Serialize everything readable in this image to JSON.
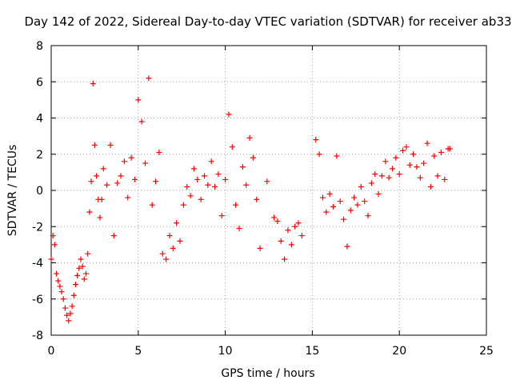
{
  "chart_data": {
    "type": "scatter",
    "title": "Day 142 of 2022, Sidereal Day-to-day VTEC variation (SDTVAR) for receiver ab33",
    "xlabel": "GPS time / hours",
    "ylabel": "SDTVAR / TECUs",
    "xlim": [
      0,
      25
    ],
    "ylim": [
      -8,
      8
    ],
    "x_ticks": [
      0,
      5,
      10,
      15,
      20,
      25
    ],
    "y_ticks": [
      -8,
      -6,
      -4,
      -2,
      0,
      2,
      4,
      6,
      8
    ],
    "x_tick_labels": [
      "0",
      "5",
      "10",
      "15",
      "20",
      "25"
    ],
    "y_tick_labels": [
      "-8",
      "-6",
      "-4",
      "-2",
      "0",
      "2",
      "4",
      "6",
      "8"
    ],
    "grid": true,
    "marker": "+",
    "color": "#ff0000",
    "series": [
      {
        "name": "SDTVAR",
        "x": [
          0.0,
          0.1,
          0.2,
          0.3,
          0.4,
          0.5,
          0.6,
          0.7,
          0.8,
          0.9,
          1.0,
          1.1,
          1.2,
          1.3,
          1.4,
          1.5,
          1.6,
          1.7,
          1.8,
          1.9,
          2.0,
          2.1,
          2.2,
          2.3,
          2.4,
          2.5,
          2.6,
          2.7,
          2.8,
          2.9,
          3.0,
          3.2,
          3.4,
          3.6,
          3.8,
          4.0,
          4.2,
          4.4,
          4.6,
          4.8,
          5.0,
          5.2,
          5.4,
          5.6,
          5.8,
          6.0,
          6.2,
          6.4,
          6.6,
          6.8,
          7.0,
          7.2,
          7.4,
          7.6,
          7.8,
          8.0,
          8.2,
          8.4,
          8.6,
          8.8,
          9.0,
          9.2,
          9.4,
          9.6,
          9.8,
          10.0,
          10.2,
          10.4,
          10.6,
          10.8,
          11.0,
          11.2,
          11.4,
          11.6,
          11.8,
          12.0,
          12.4,
          12.8,
          13.0,
          13.2,
          13.4,
          13.6,
          13.8,
          14.0,
          14.2,
          14.4,
          15.2,
          15.4,
          15.6,
          15.8,
          16.0,
          16.2,
          16.4,
          16.6,
          16.8,
          17.0,
          17.2,
          17.4,
          17.6,
          17.8,
          18.0,
          18.2,
          18.4,
          18.6,
          18.8,
          19.0,
          19.2,
          19.4,
          19.6,
          19.8,
          20.0,
          20.2,
          20.4,
          20.6,
          20.8,
          21.0,
          21.2,
          21.4,
          21.6,
          21.8,
          22.0,
          22.2,
          22.4,
          22.6,
          22.8,
          22.9
        ],
        "y": [
          -3.8,
          -2.5,
          -3.0,
          -4.6,
          -5.0,
          -5.3,
          -5.6,
          -6.0,
          -6.5,
          -6.9,
          -7.2,
          -6.8,
          -6.4,
          -5.8,
          -5.2,
          -4.7,
          -4.3,
          -3.8,
          -4.2,
          -4.9,
          -4.6,
          -3.5,
          -1.2,
          0.5,
          5.9,
          2.5,
          0.8,
          -0.5,
          -1.5,
          -0.5,
          1.2,
          0.3,
          2.5,
          -2.5,
          0.4,
          0.8,
          1.6,
          -0.4,
          1.8,
          0.6,
          5.0,
          3.8,
          1.5,
          6.2,
          -0.8,
          0.5,
          2.1,
          -3.5,
          -3.8,
          -2.5,
          -3.2,
          -1.8,
          -2.8,
          -0.8,
          0.2,
          -0.3,
          1.2,
          0.6,
          -0.5,
          0.8,
          0.3,
          1.6,
          0.2,
          0.9,
          -1.4,
          0.6,
          4.2,
          2.4,
          -0.8,
          -2.1,
          1.3,
          0.3,
          2.9,
          1.8,
          -0.5,
          -3.2,
          0.5,
          -1.5,
          -1.7,
          -2.8,
          -3.8,
          -2.2,
          -3.0,
          -2.0,
          -1.8,
          -2.5,
          2.8,
          2.0,
          -0.4,
          -1.2,
          -0.2,
          -0.9,
          1.9,
          -0.6,
          -1.6,
          -3.1,
          -1.1,
          -0.4,
          -0.8,
          0.2,
          -0.6,
          -1.4,
          0.4,
          0.9,
          -0.2,
          0.8,
          1.6,
          0.7,
          1.2,
          1.8,
          0.9,
          2.2,
          2.4,
          1.4,
          2.0,
          1.3,
          0.7,
          1.5,
          2.6,
          0.2,
          1.9,
          0.8,
          2.1,
          0.6,
          2.3,
          2.3
        ]
      }
    ]
  }
}
